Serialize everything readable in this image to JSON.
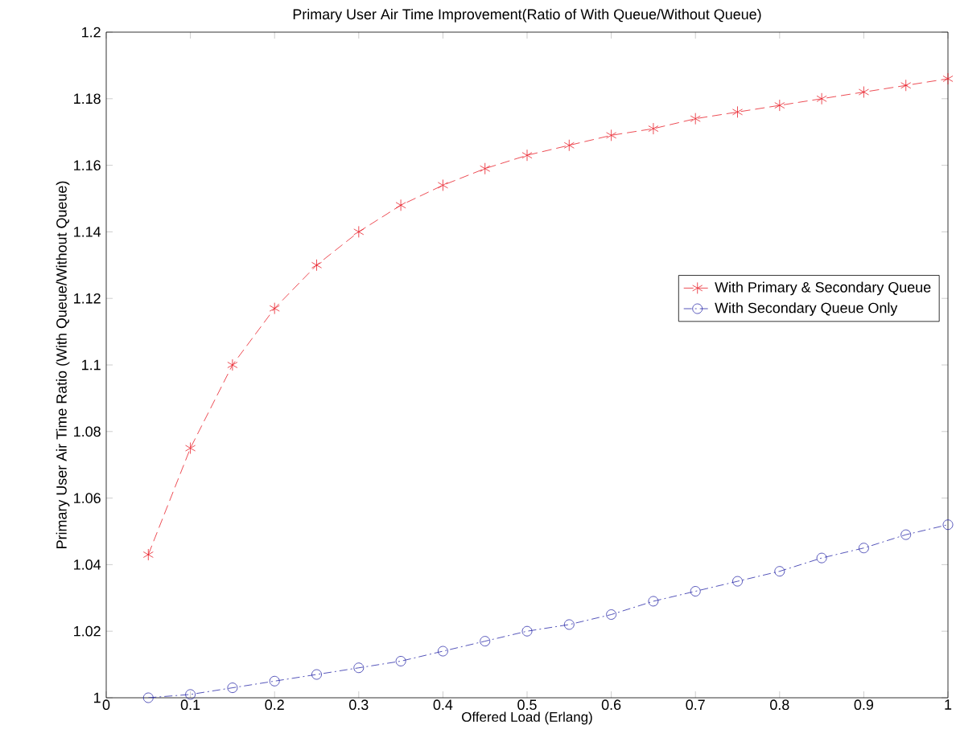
{
  "chart_data": {
    "type": "line",
    "title": "Primary User Air Time Improvement(Ratio of With Queue/Without Queue)",
    "xlabel": "Offered Load (Erlang)",
    "ylabel": "Primary User Air Time Ratio (With Queue/Without Queue)",
    "x": [
      0.05,
      0.1,
      0.15,
      0.2,
      0.25,
      0.3,
      0.35,
      0.4,
      0.45,
      0.5,
      0.55,
      0.6,
      0.65,
      0.7,
      0.75,
      0.8,
      0.85,
      0.9,
      0.95,
      1.0
    ],
    "series": [
      {
        "name": "With Primary & Secondary Queue",
        "color": "#e8202a",
        "marker": "cross",
        "line_style": "dashed",
        "values": [
          1.043,
          1.075,
          1.1,
          1.117,
          1.13,
          1.14,
          1.148,
          1.154,
          1.159,
          1.163,
          1.166,
          1.169,
          1.171,
          1.174,
          1.176,
          1.178,
          1.18,
          1.182,
          1.184,
          1.186
        ]
      },
      {
        "name": "With Secondary Queue Only",
        "color": "#2a2aa8",
        "marker": "circle",
        "line_style": "dashdot",
        "values": [
          1.0,
          1.001,
          1.003,
          1.005,
          1.007,
          1.009,
          1.011,
          1.014,
          1.017,
          1.02,
          1.022,
          1.025,
          1.029,
          1.032,
          1.035,
          1.038,
          1.042,
          1.045,
          1.049,
          1.052
        ]
      }
    ],
    "xlim": [
      0,
      1
    ],
    "ylim": [
      1,
      1.2
    ],
    "xticks": [
      0,
      0.1,
      0.2,
      0.3,
      0.4,
      0.5,
      0.6,
      0.7,
      0.8,
      0.9,
      1
    ],
    "yticks": [
      1,
      1.02,
      1.04,
      1.06,
      1.08,
      1.1,
      1.12,
      1.14,
      1.16,
      1.18,
      1.2
    ],
    "grid": false,
    "legend": "right"
  }
}
